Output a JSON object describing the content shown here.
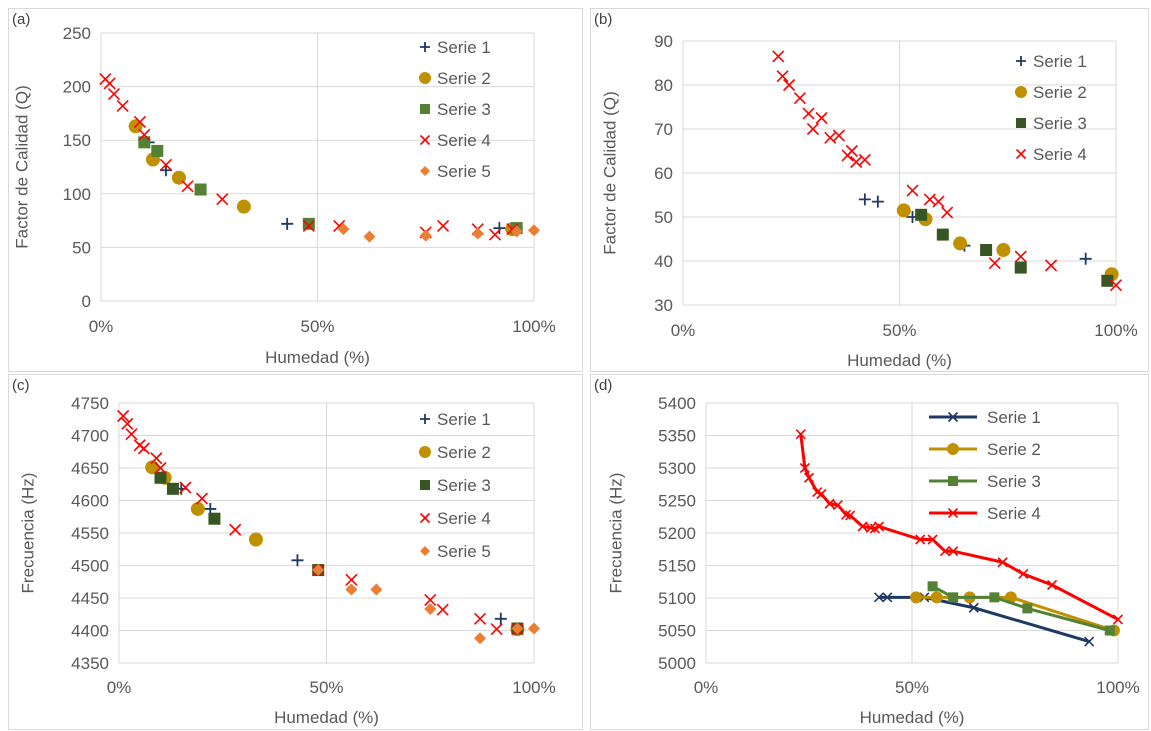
{
  "colors": {
    "serie1": "#1f3864",
    "serie2": "#bf9000",
    "serie3": "#548235",
    "serie3_dark": "#375623",
    "serie4": "#ff0000",
    "serie5": "#ed7d31",
    "grid": "#d9d9d9"
  },
  "chart_data": [
    {
      "panel_label": "(a)",
      "type": "scatter",
      "xlabel": "Humedad (%)",
      "ylabel": "Factor de Calidad (Q)",
      "xlim": [
        0,
        100
      ],
      "ylim": [
        0,
        250
      ],
      "xticks": [
        0,
        50,
        100
      ],
      "xtick_labels": [
        "0%",
        "50%",
        "100%"
      ],
      "yticks": [
        0,
        50,
        100,
        150,
        200,
        250
      ],
      "ytick_labels": [
        "0",
        "50",
        "100",
        "150",
        "200",
        "250"
      ],
      "legend_position": "top-right",
      "series": [
        {
          "name": "Serie 1",
          "marker": "plus",
          "color": "#1f3864",
          "x": [
            11,
            15,
            43,
            92,
            96
          ],
          "y": [
            148,
            122,
            72,
            68,
            66
          ]
        },
        {
          "name": "Serie 2",
          "marker": "circle",
          "color": "#bf9000",
          "x": [
            8,
            12,
            18,
            33,
            95
          ],
          "y": [
            163,
            132,
            115,
            88,
            67
          ]
        },
        {
          "name": "Serie 3",
          "marker": "square",
          "color": "#548235",
          "x": [
            10,
            13,
            23,
            48,
            96
          ],
          "y": [
            148,
            140,
            104,
            72,
            68
          ]
        },
        {
          "name": "Serie 4",
          "marker": "x",
          "color": "#ff0000",
          "x": [
            1,
            2,
            3,
            5,
            9,
            10,
            15,
            20,
            28,
            48,
            55,
            75,
            79,
            87,
            91,
            95
          ],
          "y": [
            207,
            203,
            193,
            182,
            167,
            155,
            127,
            107,
            95,
            70,
            70,
            64,
            70,
            67,
            62,
            67
          ]
        },
        {
          "name": "Serie 5",
          "marker": "diamond",
          "color": "#ed7d31",
          "x": [
            56,
            62,
            75,
            87,
            96,
            100
          ],
          "y": [
            67,
            60,
            61,
            63,
            65,
            66
          ]
        }
      ]
    },
    {
      "panel_label": "(b)",
      "type": "scatter",
      "xlabel": "Humedad (%)",
      "ylabel": "Factor de Calidad (Q)",
      "xlim": [
        0,
        100
      ],
      "ylim": [
        30,
        90
      ],
      "xticks": [
        0,
        50,
        100
      ],
      "xtick_labels": [
        "0%",
        "50%",
        "100%"
      ],
      "yticks": [
        30,
        40,
        50,
        60,
        70,
        80,
        90
      ],
      "ytick_labels": [
        "30",
        "40",
        "50",
        "60",
        "70",
        "80",
        "90"
      ],
      "legend_position": "top-right",
      "series": [
        {
          "name": "Serie 1",
          "marker": "plus",
          "color": "#1f3864",
          "x": [
            42,
            45,
            53,
            65,
            93
          ],
          "y": [
            54,
            53.5,
            50,
            43.5,
            40.5
          ]
        },
        {
          "name": "Serie 2",
          "marker": "circle",
          "color": "#bf9000",
          "x": [
            51,
            56,
            64,
            74,
            99
          ],
          "y": [
            51.5,
            49.5,
            44,
            42.5,
            37
          ]
        },
        {
          "name": "Serie 3",
          "marker": "square",
          "color": "#375623",
          "x": [
            55,
            60,
            70,
            78,
            98
          ],
          "y": [
            50.5,
            46,
            42.5,
            38.5,
            35.5
          ]
        },
        {
          "name": "Serie 4",
          "marker": "x",
          "color": "#ff0000",
          "x": [
            22,
            23,
            24.5,
            27,
            29,
            30,
            32,
            34,
            36,
            38,
            39,
            40,
            42,
            53,
            57,
            59,
            61,
            72,
            78,
            85,
            100
          ],
          "y": [
            86.5,
            82,
            80,
            77,
            73.5,
            70,
            72.5,
            68,
            68.5,
            64,
            65,
            62.5,
            63,
            56,
            54,
            53.5,
            51,
            39.5,
            41,
            39,
            34.5
          ]
        }
      ]
    },
    {
      "panel_label": "(c)",
      "type": "scatter",
      "xlabel": "Humedad (%)",
      "ylabel": "Frecuencia (Hz)",
      "xlim": [
        0,
        100
      ],
      "ylim": [
        4350,
        4750
      ],
      "xticks": [
        0,
        50,
        100
      ],
      "xtick_labels": [
        "0%",
        "50%",
        "100%"
      ],
      "yticks": [
        4350,
        4400,
        4450,
        4500,
        4550,
        4600,
        4650,
        4700,
        4750
      ],
      "ytick_labels": [
        "4350",
        "4400",
        "4450",
        "4500",
        "4550",
        "4600",
        "4650",
        "4700",
        "4750"
      ],
      "legend_position": "top-right",
      "series": [
        {
          "name": "Serie 1",
          "marker": "plus",
          "color": "#1f3864",
          "x": [
            15,
            22,
            43,
            92,
            96
          ],
          "y": [
            4618,
            4587,
            4508,
            4418,
            4402
          ]
        },
        {
          "name": "Serie 2",
          "marker": "circle",
          "color": "#bf9000",
          "x": [
            8,
            11,
            19,
            33,
            96
          ],
          "y": [
            4651,
            4635,
            4587,
            4540,
            4402
          ]
        },
        {
          "name": "Serie 3",
          "marker": "square",
          "color": "#375623",
          "x": [
            10,
            13,
            23,
            48,
            96
          ],
          "y": [
            4635,
            4618,
            4572,
            4493,
            4403
          ]
        },
        {
          "name": "Serie 4",
          "marker": "x",
          "color": "#ff0000",
          "x": [
            1,
            2,
            3,
            5,
            6,
            9,
            10,
            16,
            20,
            28,
            48,
            56,
            75,
            78,
            87,
            91,
            96
          ],
          "y": [
            4730,
            4718,
            4702,
            4685,
            4680,
            4665,
            4650,
            4620,
            4603,
            4555,
            4493,
            4478,
            4447,
            4432,
            4418,
            4402,
            4402
          ]
        },
        {
          "name": "Serie 5",
          "marker": "diamond",
          "color": "#ed7d31",
          "x": [
            48,
            56,
            62,
            75,
            87,
            96,
            100
          ],
          "y": [
            4493,
            4463,
            4463,
            4433,
            4388,
            4403,
            4403
          ]
        }
      ]
    },
    {
      "panel_label": "(d)",
      "type": "line",
      "xlabel": "Humedad (%)",
      "ylabel": "Frecuencia (Hz)",
      "xlim": [
        0,
        100
      ],
      "ylim": [
        5000,
        5400
      ],
      "xticks": [
        0,
        50,
        100
      ],
      "xtick_labels": [
        "0%",
        "50%",
        "100%"
      ],
      "yticks": [
        5000,
        5050,
        5100,
        5150,
        5200,
        5250,
        5300,
        5350,
        5400
      ],
      "ytick_labels": [
        "5000",
        "5050",
        "5100",
        "5150",
        "5200",
        "5250",
        "5300",
        "5350",
        "5400"
      ],
      "legend_position": "top-right",
      "series": [
        {
          "name": "Serie 1",
          "marker": "x",
          "color": "#1f3864",
          "x": [
            42,
            44,
            53,
            65,
            93
          ],
          "y": [
            5101,
            5101,
            5101,
            5085,
            5033
          ]
        },
        {
          "name": "Serie 2",
          "marker": "circle",
          "color": "#bf9000",
          "x": [
            51,
            56,
            64,
            74,
            99
          ],
          "y": [
            5101,
            5101,
            5101,
            5101,
            5050
          ]
        },
        {
          "name": "Serie 3",
          "marker": "square",
          "color": "#548235",
          "x": [
            55,
            60,
            70,
            78,
            98
          ],
          "y": [
            5118,
            5101,
            5101,
            5084,
            5050
          ]
        },
        {
          "name": "Serie 4",
          "marker": "x",
          "color": "#ff0000",
          "x": [
            23,
            24,
            25,
            27,
            28,
            30,
            32,
            34,
            35,
            38,
            40,
            41,
            42,
            52,
            55,
            58,
            60,
            72,
            77,
            84,
            100
          ],
          "y": [
            5352,
            5300,
            5285,
            5263,
            5260,
            5245,
            5243,
            5228,
            5227,
            5210,
            5208,
            5207,
            5210,
            5190,
            5190,
            5172,
            5172,
            5155,
            5137,
            5120,
            5067
          ]
        }
      ]
    }
  ]
}
